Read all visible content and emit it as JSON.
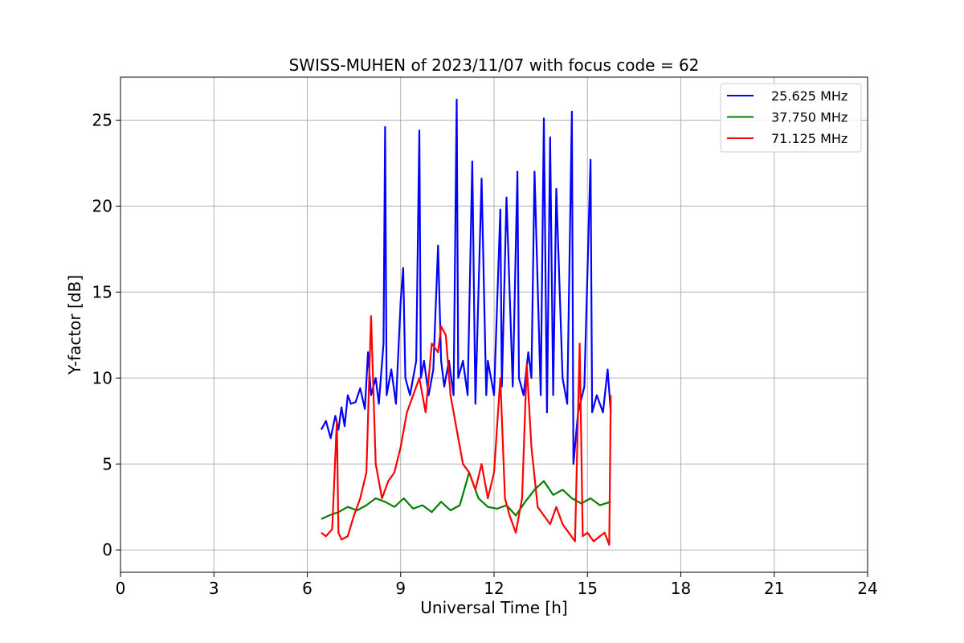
{
  "chart_data": {
    "type": "line",
    "title": "SWISS-MUHEN of 2023/11/07 with focus code = 62",
    "xlabel": "Universal Time [h]",
    "ylabel": "Y-factor [dB]",
    "xlim": [
      0,
      24
    ],
    "ylim": [
      -1.3,
      27.5
    ],
    "xticks": [
      0,
      3,
      6,
      9,
      12,
      15,
      18,
      21,
      24
    ],
    "yticks": [
      0,
      5,
      10,
      15,
      20,
      25
    ],
    "grid": true,
    "legend_position": "top-right",
    "series": [
      {
        "name": "25.625 MHz",
        "color": "#0000ff",
        "x": [
          6.45,
          6.6,
          6.75,
          6.9,
          7.0,
          7.1,
          7.2,
          7.3,
          7.4,
          7.55,
          7.7,
          7.85,
          7.95,
          8.05,
          8.2,
          8.3,
          8.45,
          8.5,
          8.55,
          8.7,
          8.85,
          9.0,
          9.08,
          9.15,
          9.3,
          9.5,
          9.6,
          9.65,
          9.75,
          9.9,
          10.05,
          10.2,
          10.3,
          10.4,
          10.55,
          10.7,
          10.8,
          10.85,
          11.0,
          11.15,
          11.3,
          11.4,
          11.6,
          11.75,
          11.8,
          12.0,
          12.2,
          12.25,
          12.4,
          12.6,
          12.75,
          12.8,
          12.95,
          13.1,
          13.2,
          13.3,
          13.5,
          13.6,
          13.7,
          13.8,
          13.9,
          14.0,
          14.2,
          14.35,
          14.5,
          14.55,
          14.7,
          14.9,
          15.1,
          15.15,
          15.3,
          15.5,
          15.65,
          15.75
        ],
        "y": [
          7.0,
          7.5,
          6.5,
          7.8,
          7.0,
          8.3,
          7.2,
          9.0,
          8.5,
          8.6,
          9.4,
          8.2,
          11.5,
          9.0,
          10.0,
          8.5,
          12.0,
          24.6,
          9.0,
          10.5,
          8.5,
          14.5,
          16.4,
          10.0,
          9.0,
          11.0,
          24.4,
          10.0,
          11.0,
          9.0,
          10.5,
          17.7,
          11.0,
          9.5,
          11.0,
          9.0,
          26.2,
          10.0,
          11.0,
          9.0,
          22.6,
          8.5,
          21.6,
          9.0,
          11.0,
          9.0,
          19.8,
          9.5,
          20.5,
          9.5,
          22.0,
          10.0,
          9.0,
          11.5,
          10.0,
          22.0,
          9.0,
          25.1,
          8.0,
          24.0,
          9.0,
          21.0,
          10.0,
          8.5,
          25.5,
          5.0,
          8.0,
          9.5,
          22.7,
          8.0,
          9.0,
          8.0,
          10.5,
          8.0
        ]
      },
      {
        "name": "37.750 MHz",
        "color": "#008000",
        "x": [
          6.45,
          6.7,
          7.0,
          7.3,
          7.6,
          7.9,
          8.2,
          8.5,
          8.8,
          9.1,
          9.4,
          9.7,
          10.0,
          10.3,
          10.6,
          10.9,
          11.2,
          11.5,
          11.8,
          12.1,
          12.4,
          12.7,
          13.0,
          13.3,
          13.6,
          13.9,
          14.2,
          14.5,
          14.8,
          15.1,
          15.4,
          15.75
        ],
        "y": [
          1.8,
          2.0,
          2.2,
          2.5,
          2.3,
          2.6,
          3.0,
          2.8,
          2.5,
          3.0,
          2.4,
          2.6,
          2.2,
          2.8,
          2.3,
          2.6,
          4.5,
          3.0,
          2.5,
          2.4,
          2.6,
          2.0,
          2.8,
          3.5,
          4.0,
          3.2,
          3.5,
          3.0,
          2.7,
          3.0,
          2.6,
          2.8
        ]
      },
      {
        "name": "71.125 MHz",
        "color": "#ff0000",
        "x": [
          6.45,
          6.6,
          6.8,
          6.95,
          7.0,
          7.1,
          7.3,
          7.5,
          7.7,
          7.9,
          8.05,
          8.2,
          8.4,
          8.6,
          8.8,
          9.0,
          9.2,
          9.4,
          9.6,
          9.8,
          10.0,
          10.2,
          10.3,
          10.45,
          10.6,
          10.8,
          11.0,
          11.2,
          11.4,
          11.6,
          11.8,
          12.0,
          12.2,
          12.35,
          12.5,
          12.7,
          12.9,
          13.05,
          13.2,
          13.4,
          13.6,
          13.8,
          14.0,
          14.2,
          14.4,
          14.6,
          14.75,
          14.85,
          15.0,
          15.2,
          15.4,
          15.55,
          15.7,
          15.75
        ],
        "y": [
          1.0,
          0.8,
          1.2,
          7.5,
          1.0,
          0.6,
          0.8,
          2.0,
          3.0,
          4.5,
          13.6,
          5.0,
          3.0,
          4.0,
          4.5,
          6.0,
          8.0,
          9.0,
          10.0,
          8.0,
          12.0,
          11.5,
          13.0,
          12.5,
          9.0,
          7.0,
          5.0,
          4.5,
          3.5,
          5.0,
          3.0,
          4.5,
          10.0,
          3.0,
          2.0,
          1.0,
          3.0,
          10.8,
          6.0,
          2.5,
          2.0,
          1.5,
          2.5,
          1.5,
          1.0,
          0.5,
          12.0,
          0.8,
          1.0,
          0.5,
          0.8,
          1.0,
          0.3,
          9.0
        ]
      }
    ]
  }
}
